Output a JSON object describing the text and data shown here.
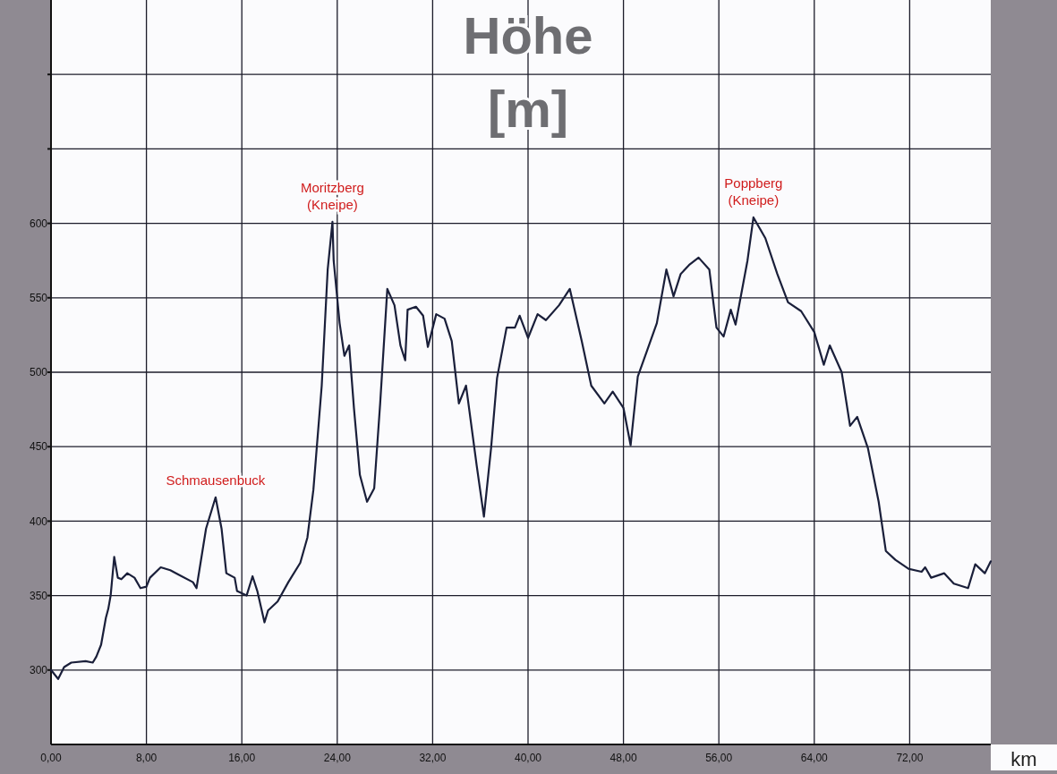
{
  "chart_data": {
    "type": "line",
    "title": "Höhe\n[m]",
    "xlabel": "km",
    "x": [
      0,
      0.6,
      1.1,
      1.7,
      2.9,
      3.5,
      3.8,
      4.2,
      4.6,
      4.8,
      5.0,
      5.3,
      5.6,
      5.9,
      6.4,
      7.0,
      7.5,
      8.0,
      8.3,
      9.2,
      10.0,
      10.7,
      11.9,
      12.2,
      13.0,
      13.8,
      14.3,
      14.7,
      15.4,
      15.6,
      16.4,
      16.9,
      17.3,
      17.9,
      18.2,
      19.0,
      19.9,
      20.9,
      21.5,
      22.0,
      22.7,
      23.2,
      23.6,
      23.7,
      24.2,
      24.6,
      25.0,
      25.4,
      25.9,
      26.5,
      27.1,
      27.6,
      28.2,
      28.8,
      29.3,
      29.7,
      29.9,
      30.6,
      31.2,
      31.6,
      32.3,
      33.0,
      33.6,
      34.2,
      34.8,
      35.7,
      36.3,
      36.9,
      37.4,
      38.2,
      38.9,
      39.3,
      40.0,
      40.8,
      41.5,
      42.6,
      43.5,
      44.5,
      45.3,
      46.4,
      47.1,
      48.0,
      48.6,
      49.2,
      50.0,
      50.8,
      51.6,
      52.2,
      52.8,
      53.5,
      54.3,
      55.2,
      55.8,
      56.4,
      57.0,
      57.4,
      58.4,
      58.9,
      59.9,
      60.9,
      61.8,
      62.9,
      64.0,
      64.8,
      65.3,
      66.3,
      67.0,
      67.6,
      68.5,
      69.4,
      70.0,
      70.8,
      71.9,
      73.0,
      73.3,
      73.8,
      74.9,
      75.7,
      76.9,
      77.5,
      78.3,
      78.8
    ],
    "series": [
      {
        "color": "#1a1f3a",
        "values": [
          300,
          294,
          302,
          305,
          306,
          305,
          309,
          317,
          335,
          341,
          350,
          376,
          362,
          361,
          365,
          362,
          355,
          356,
          362,
          369,
          367,
          364,
          359,
          355,
          395,
          416,
          395,
          365,
          362,
          353,
          350,
          363,
          353,
          332,
          340,
          346,
          359,
          372,
          389,
          421,
          491,
          569,
          601,
          575,
          533,
          511,
          518,
          476,
          431,
          413,
          422,
          479,
          556,
          545,
          518,
          508,
          542,
          544,
          538,
          517,
          539,
          536,
          521,
          479,
          491,
          437,
          403,
          449,
          496,
          530,
          530,
          538,
          523,
          539,
          535,
          545,
          556,
          521,
          491,
          479,
          487,
          476,
          451,
          497,
          515,
          533,
          569,
          551,
          566,
          572,
          577,
          569,
          530,
          524,
          542,
          532,
          575,
          604,
          590,
          566,
          547,
          541,
          527,
          505,
          518,
          500,
          464,
          470,
          449,
          413,
          380,
          374,
          368,
          366,
          369,
          362,
          365,
          358,
          355,
          371,
          365,
          373
        ]
      }
    ],
    "xlim": [
      0,
      78.8
    ],
    "ylim": [
      250,
      750
    ],
    "xticks": [
      {
        "value": 0,
        "label": "0,00"
      },
      {
        "value": 8,
        "label": "8,00"
      },
      {
        "value": 16,
        "label": "16,00"
      },
      {
        "value": 24,
        "label": "24,00"
      },
      {
        "value": 32,
        "label": "32,00"
      },
      {
        "value": 40,
        "label": "40,00"
      },
      {
        "value": 48,
        "label": "48,00"
      },
      {
        "value": 56,
        "label": "56,00"
      },
      {
        "value": 64,
        "label": "64,00"
      },
      {
        "value": 72,
        "label": "72,00"
      }
    ],
    "yticks": [
      300,
      350,
      400,
      450,
      500,
      550,
      600,
      {
        "value": 650,
        "label": null
      },
      {
        "value": 700,
        "label": null
      }
    ],
    "grid": true,
    "marker": "none",
    "line_style": "solid",
    "annotations": [
      {
        "text": "Schmausenbuck",
        "x": 13.8,
        "y": 416
      },
      {
        "text": "Moritzberg\n(Kneipe)",
        "x": 23.6,
        "y": 601
      },
      {
        "text": "Poppberg\n(Kneipe)",
        "x": 58.9,
        "y": 604
      }
    ]
  }
}
